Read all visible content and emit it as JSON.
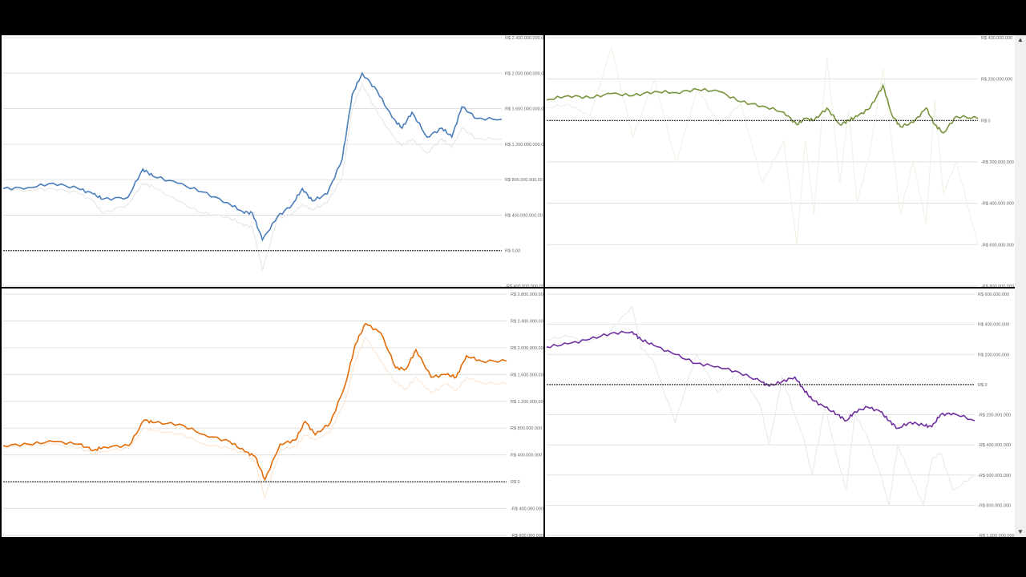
{
  "colors": {
    "background": "#000000",
    "panel": "#ffffff",
    "grid": "#d9d9d9",
    "ghost": "#e6e6e6"
  },
  "scrollbar": {
    "up_icon": "triangle-up-icon",
    "down_icon": "triangle-down-icon"
  },
  "chart_data": [
    {
      "type": "line",
      "grid": true,
      "ylim": [
        -400000000,
        2400000000
      ],
      "yticks": [
        2400000000,
        2000000000,
        1600000000,
        1200000000,
        800000000,
        400000000,
        0,
        -400000000
      ],
      "ytick_labels": [
        "R$ 2.400.000.000,00",
        "R$ 2.000.000.000,00",
        "R$ 1.600.000.000,00",
        "R$ 1.200.000.000,00",
        "R$ 800.000.000,00",
        "R$ 400.000.000,00",
        "R$ 0,00",
        "-R$ 400.000.000,00"
      ],
      "x": [
        0,
        5,
        10,
        15,
        18,
        20,
        25,
        28,
        30,
        35,
        40,
        45,
        48,
        50,
        52,
        55,
        58,
        60,
        62,
        65,
        68,
        70,
        72,
        75,
        78,
        80,
        82,
        85,
        88,
        90,
        92,
        95,
        100
      ],
      "series": [
        {
          "color": "#4a7ebb",
          "values": [
            700,
            710,
            760,
            700,
            640,
            580,
            600,
            920,
            840,
            760,
            660,
            540,
            440,
            420,
            120,
            380,
            520,
            700,
            560,
            640,
            1030,
            1760,
            2000,
            1800,
            1500,
            1380,
            1560,
            1280,
            1380,
            1280,
            1620,
            1490,
            1480
          ]
        },
        {
          "color": "#e6e6e6",
          "values": [
            690,
            680,
            700,
            650,
            560,
            420,
            520,
            760,
            720,
            560,
            420,
            380,
            300,
            260,
            -220,
            360,
            420,
            520,
            460,
            540,
            820,
            1600,
            1880,
            1560,
            1300,
            1180,
            1260,
            1100,
            1260,
            1160,
            1380,
            1260,
            1260
          ]
        }
      ]
    },
    {
      "type": "line",
      "grid": true,
      "ylim": [
        -800000000,
        400000000
      ],
      "yticks": [
        400000000,
        200000000,
        0,
        -200000000,
        -400000000,
        -600000000,
        -800000000
      ],
      "ytick_labels": [
        "R$ 400.000.000",
        "R$ 200.000.000",
        "R$ 0",
        "-R$ 200.000.000",
        "-R$ 400.000.000",
        "-R$ 600.000.000",
        "-R$ 800.000.000"
      ],
      "x": [
        0,
        5,
        10,
        15,
        20,
        25,
        30,
        35,
        40,
        45,
        50,
        55,
        58,
        60,
        62,
        65,
        68,
        70,
        72,
        75,
        78,
        80,
        82,
        85,
        88,
        90,
        92,
        95,
        100
      ],
      "series": [
        {
          "color": "#77933c",
          "values": [
            100,
            120,
            110,
            130,
            120,
            140,
            135,
            150,
            140,
            90,
            70,
            40,
            -20,
            10,
            0,
            60,
            -20,
            0,
            20,
            60,
            170,
            30,
            -30,
            -10,
            60,
            -20,
            -60,
            20,
            10
          ]
        },
        {
          "color": "#eef2e4",
          "values": [
            60,
            80,
            20,
            350,
            -80,
            200,
            -200,
            150,
            -20,
            80,
            -300,
            -100,
            -600,
            -100,
            -450,
            300,
            -300,
            50,
            -400,
            -150,
            250,
            -100,
            -450,
            -200,
            -500,
            100,
            -350,
            -200,
            -600
          ]
        }
      ]
    },
    {
      "type": "line",
      "grid": true,
      "ylim": [
        -800000000,
        2800000000
      ],
      "yticks": [
        2800000000,
        2400000000,
        2000000000,
        1600000000,
        1200000000,
        800000000,
        400000000,
        0,
        -400000000,
        -800000000
      ],
      "ytick_labels": [
        "R$ 2.800.000.000",
        "R$ 2.400.000.000",
        "R$ 2.000.000.000",
        "R$ 1.600.000.000",
        "R$ 1.200.000.000",
        "R$ 800.000.000",
        "R$ 400.000.000",
        "R$ 0",
        "-R$ 400.000.000",
        "-R$ 800.000.000"
      ],
      "x": [
        0,
        5,
        10,
        15,
        18,
        20,
        25,
        28,
        30,
        35,
        40,
        45,
        48,
        50,
        52,
        55,
        58,
        60,
        62,
        65,
        68,
        70,
        72,
        75,
        78,
        80,
        82,
        85,
        88,
        90,
        92,
        95,
        100
      ],
      "series": [
        {
          "color": "#e36c09",
          "values": [
            540,
            560,
            600,
            560,
            470,
            520,
            540,
            920,
            880,
            860,
            700,
            600,
            450,
            380,
            30,
            560,
            620,
            900,
            700,
            880,
            1460,
            2060,
            2360,
            2220,
            1700,
            1680,
            1970,
            1560,
            1600,
            1560,
            1880,
            1800,
            1800
          ]
        },
        {
          "color": "#fbe6d4",
          "values": [
            520,
            540,
            560,
            500,
            420,
            460,
            500,
            800,
            760,
            720,
            560,
            500,
            420,
            300,
            -240,
            480,
            520,
            700,
            620,
            760,
            1220,
            1820,
            2160,
            1800,
            1480,
            1380,
            1560,
            1320,
            1460,
            1360,
            1560,
            1480,
            1460
          ]
        }
      ]
    },
    {
      "type": "line",
      "grid": true,
      "ylim": [
        -1000000000,
        600000000
      ],
      "yticks": [
        600000000,
        400000000,
        200000000,
        0,
        -200000000,
        -400000000,
        -600000000,
        -800000000,
        -1000000000
      ],
      "ytick_labels": [
        "R$ 600.000.000",
        "R$ 400.000.000",
        "R$ 200.000.000",
        "R$ 0",
        "-R$ 200.000.000",
        "-R$ 400.000.000",
        "-R$ 600.000.000",
        "-R$ 800.000.000",
        "-R$ 1.000.000.000"
      ],
      "x": [
        0,
        5,
        10,
        15,
        20,
        22,
        25,
        30,
        35,
        40,
        45,
        50,
        52,
        55,
        58,
        60,
        62,
        65,
        68,
        70,
        72,
        75,
        78,
        80,
        82,
        85,
        88,
        90,
        92,
        95,
        100
      ],
      "series": [
        {
          "color": "#7030a0",
          "values": [
            250,
            270,
            300,
            340,
            350,
            300,
            260,
            200,
            140,
            120,
            80,
            20,
            -10,
            20,
            50,
            -30,
            -100,
            -150,
            -200,
            -240,
            -180,
            -150,
            -180,
            -240,
            -290,
            -250,
            -270,
            -280,
            -200,
            -190,
            -240
          ]
        },
        {
          "color": "#eaeaea",
          "values": [
            300,
            320,
            280,
            360,
            520,
            250,
            150,
            -250,
            200,
            -50,
            100,
            -150,
            -400,
            50,
            -200,
            -350,
            -600,
            -150,
            -500,
            -700,
            -200,
            -350,
            -600,
            -800,
            -400,
            -600,
            -800,
            -500,
            -450,
            -700,
            -600
          ]
        }
      ]
    }
  ]
}
